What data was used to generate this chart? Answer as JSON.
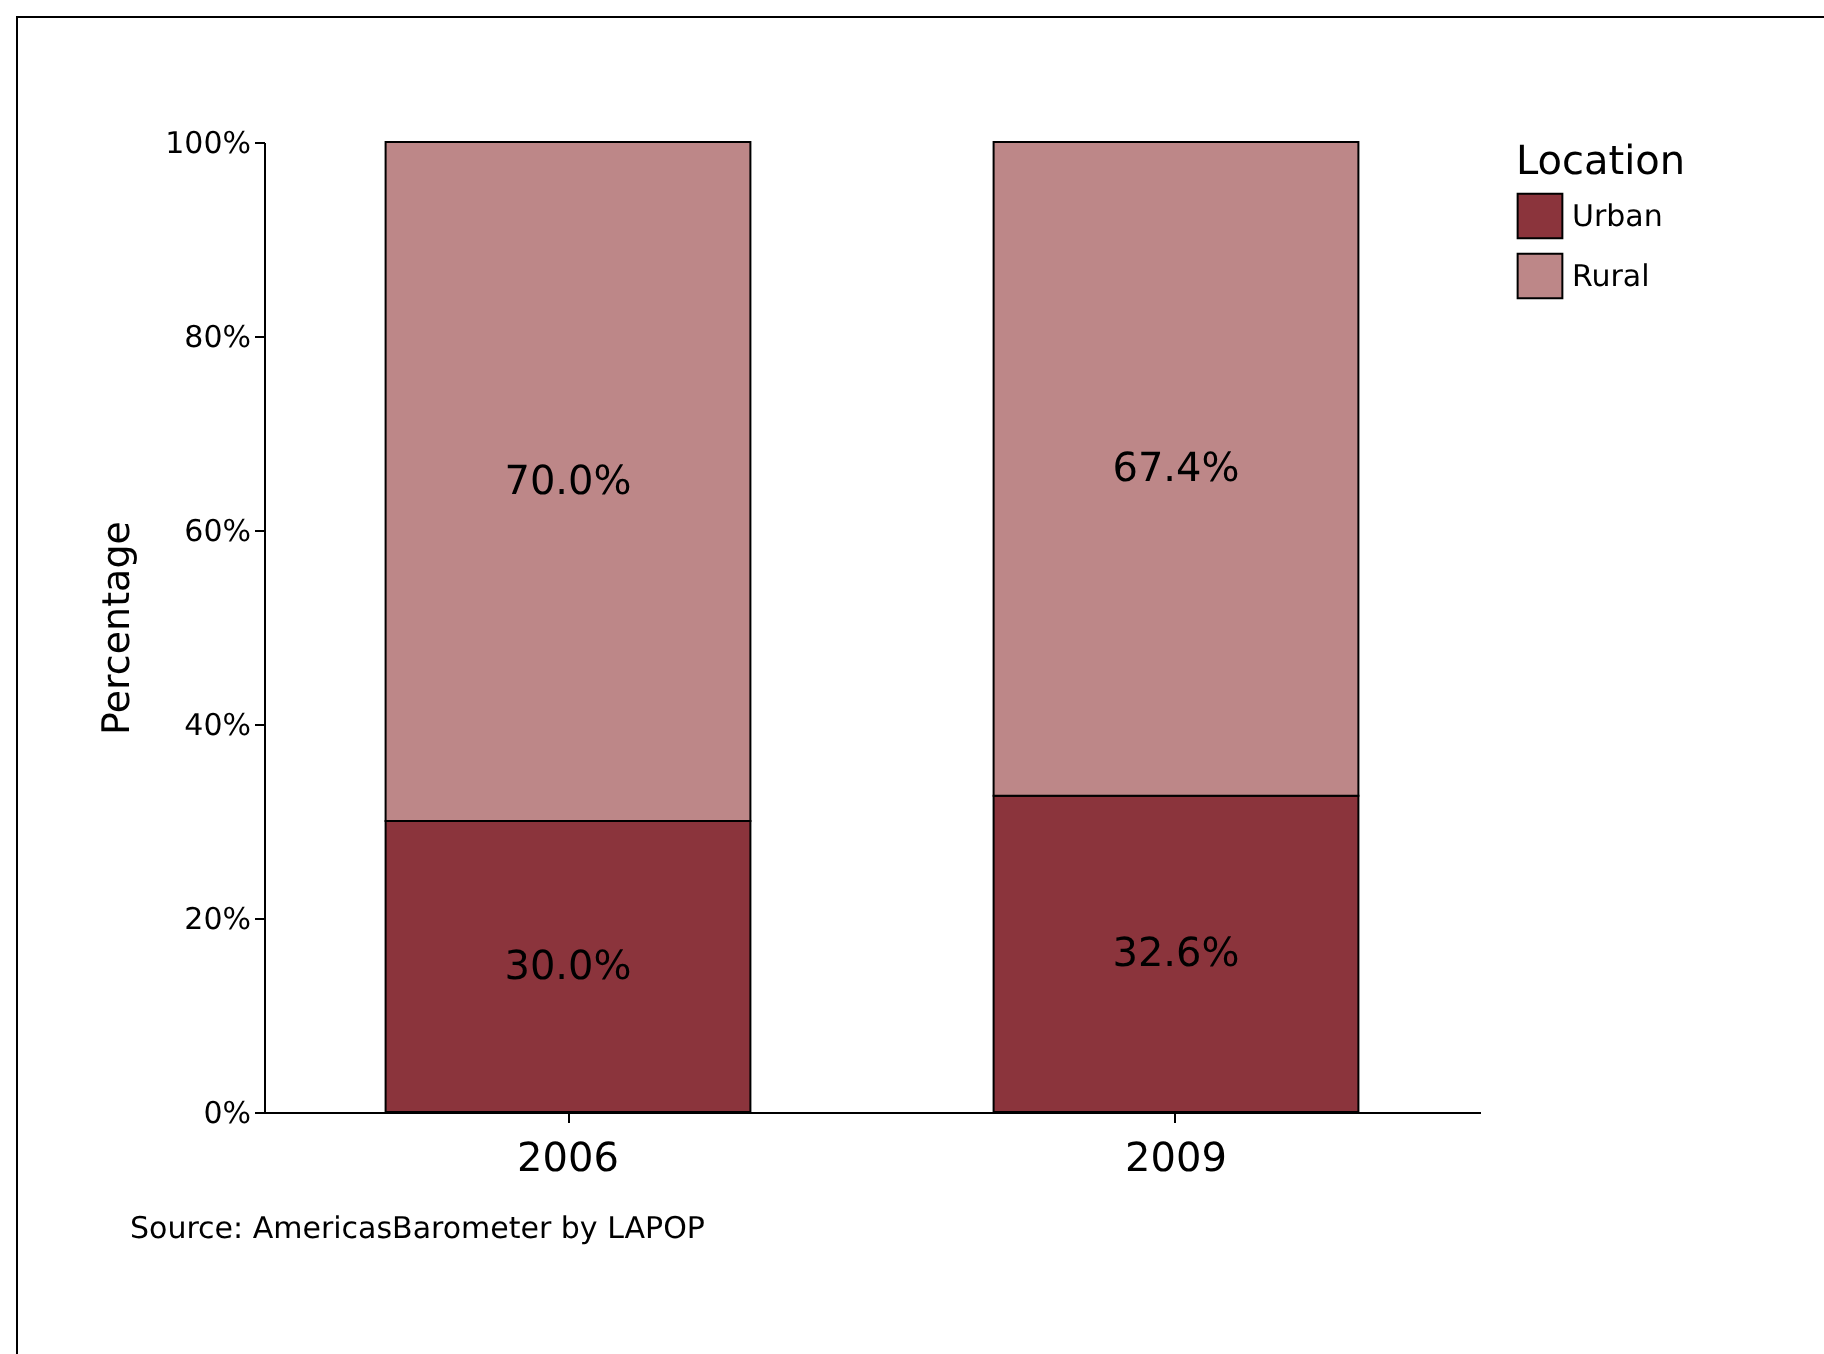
{
  "chart_data": {
    "type": "bar",
    "stacked": true,
    "categories": [
      "2006",
      "2009"
    ],
    "series": [
      {
        "name": "Urban",
        "color": "#8b343c",
        "values": [
          30.0,
          32.6
        ],
        "value_labels": [
          "30.0%",
          "32.6%"
        ]
      },
      {
        "name": "Rural",
        "color": "#bd8788",
        "values": [
          70.0,
          67.4
        ],
        "value_labels": [
          "70.0%",
          "67.4%"
        ]
      }
    ],
    "ylabel": "Percentage",
    "legend_title": "Location",
    "legend": "top right",
    "ylim": [
      0,
      100
    ],
    "yticks": [
      {
        "value": 0,
        "label": "0%"
      },
      {
        "value": 20,
        "label": "20%"
      },
      {
        "value": 40,
        "label": "40%"
      },
      {
        "value": 60,
        "label": "60%"
      },
      {
        "value": 80,
        "label": "80%"
      },
      {
        "value": 100,
        "label": "100%"
      }
    ],
    "annotations": [
      "Source: AmericasBarometer by LAPOP"
    ]
  }
}
